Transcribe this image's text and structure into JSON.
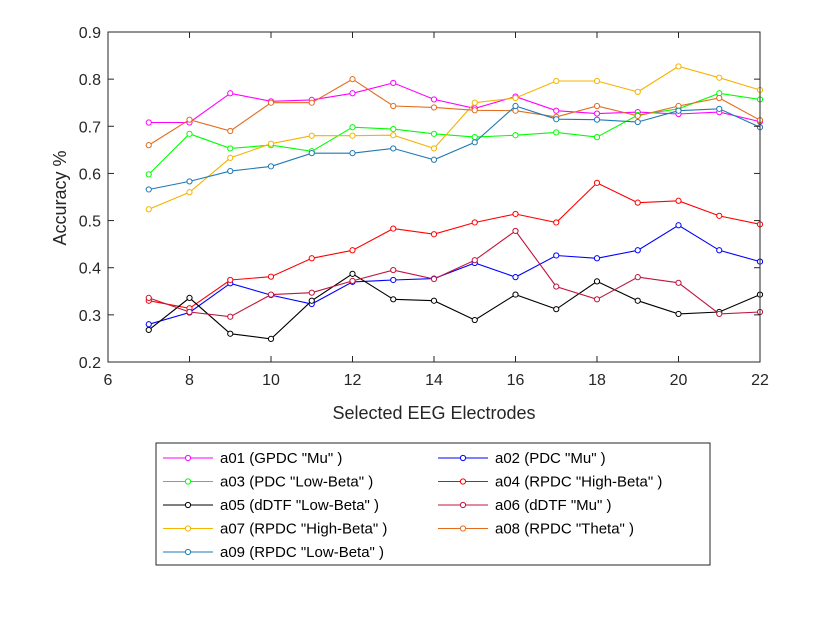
{
  "chart_data": {
    "type": "line",
    "title": "",
    "xlabel": "Selected EEG Electrodes",
    "ylabel": "Accuracy %",
    "xlim": [
      6,
      22
    ],
    "ylim": [
      0.2,
      0.9
    ],
    "xticks": [
      6,
      8,
      10,
      12,
      14,
      16,
      18,
      20,
      22
    ],
    "yticks": [
      0.2,
      0.3,
      0.4,
      0.5,
      0.6,
      0.7,
      0.8,
      0.9
    ],
    "xtick_labels": [
      "6",
      "8",
      "10",
      "12",
      "14",
      "16",
      "18",
      "20",
      "22"
    ],
    "ytick_labels": [
      "0.2",
      "0.3",
      "0.4",
      "0.5",
      "0.6",
      "0.7",
      "0.8",
      "0.9"
    ],
    "grid": false,
    "legend_position": "below",
    "x": [
      7,
      8,
      9,
      10,
      11,
      12,
      13,
      14,
      15,
      16,
      17,
      18,
      19,
      20,
      21,
      22
    ],
    "series": [
      {
        "name": "a01 (GPDC \"Mu\" )",
        "color": "#ff00ff",
        "values": [
          0.708,
          0.708,
          0.77,
          0.753,
          0.756,
          0.77,
          0.792,
          0.757,
          0.738,
          0.763,
          0.733,
          0.727,
          0.73,
          0.726,
          0.73,
          0.71
        ]
      },
      {
        "name": "a02 (PDC \"Mu\" )",
        "color": "#0000ff",
        "values": [
          0.28,
          0.305,
          0.367,
          0.342,
          0.323,
          0.37,
          0.374,
          0.377,
          0.41,
          0.38,
          0.426,
          0.42,
          0.437,
          0.49,
          0.437,
          0.413
        ]
      },
      {
        "name": "a03 (PDC \"Low-Beta\" )",
        "color": "#00ff00",
        "values": [
          0.598,
          0.684,
          0.653,
          0.66,
          0.647,
          0.698,
          0.694,
          0.684,
          0.677,
          0.681,
          0.687,
          0.677,
          0.724,
          0.737,
          0.77,
          0.757
        ]
      },
      {
        "name": "a04 (RPDC \"High-Beta\" )",
        "color": "#ff0000",
        "values": [
          0.33,
          0.314,
          0.374,
          0.381,
          0.42,
          0.437,
          0.483,
          0.471,
          0.496,
          0.514,
          0.496,
          0.58,
          0.538,
          0.542,
          0.51,
          0.492
        ]
      },
      {
        "name": "a05 (dDTF \"Low-Beta\" )",
        "color": "#000000",
        "values": [
          0.268,
          0.336,
          0.26,
          0.249,
          0.33,
          0.387,
          0.333,
          0.33,
          0.289,
          0.343,
          0.312,
          0.371,
          0.33,
          0.302,
          0.306,
          0.343
        ]
      },
      {
        "name": "a06 (dDTF \"Mu\" )",
        "color": "#c0143c",
        "values": [
          0.336,
          0.306,
          0.296,
          0.343,
          0.347,
          0.372,
          0.395,
          0.376,
          0.416,
          0.478,
          0.36,
          0.333,
          0.38,
          0.368,
          0.302,
          0.306
        ]
      },
      {
        "name": "a07 (RPDC \"High-Beta\" )",
        "color": "#f5b400",
        "values": [
          0.524,
          0.56,
          0.633,
          0.663,
          0.68,
          0.68,
          0.681,
          0.653,
          0.75,
          0.76,
          0.796,
          0.796,
          0.773,
          0.827,
          0.803,
          0.777
        ]
      },
      {
        "name": "a08 (RPDC \"Theta\" )",
        "color": "#e36c1c",
        "values": [
          0.66,
          0.714,
          0.69,
          0.75,
          0.75,
          0.8,
          0.743,
          0.74,
          0.734,
          0.733,
          0.72,
          0.743,
          0.722,
          0.743,
          0.76,
          0.713
        ]
      },
      {
        "name": "a09 (RPDC \"Low-Beta\" )",
        "color": "#1f7ab4",
        "values": [
          0.566,
          0.583,
          0.605,
          0.615,
          0.643,
          0.643,
          0.653,
          0.629,
          0.666,
          0.743,
          0.715,
          0.714,
          0.709,
          0.733,
          0.737,
          0.698
        ]
      }
    ]
  }
}
